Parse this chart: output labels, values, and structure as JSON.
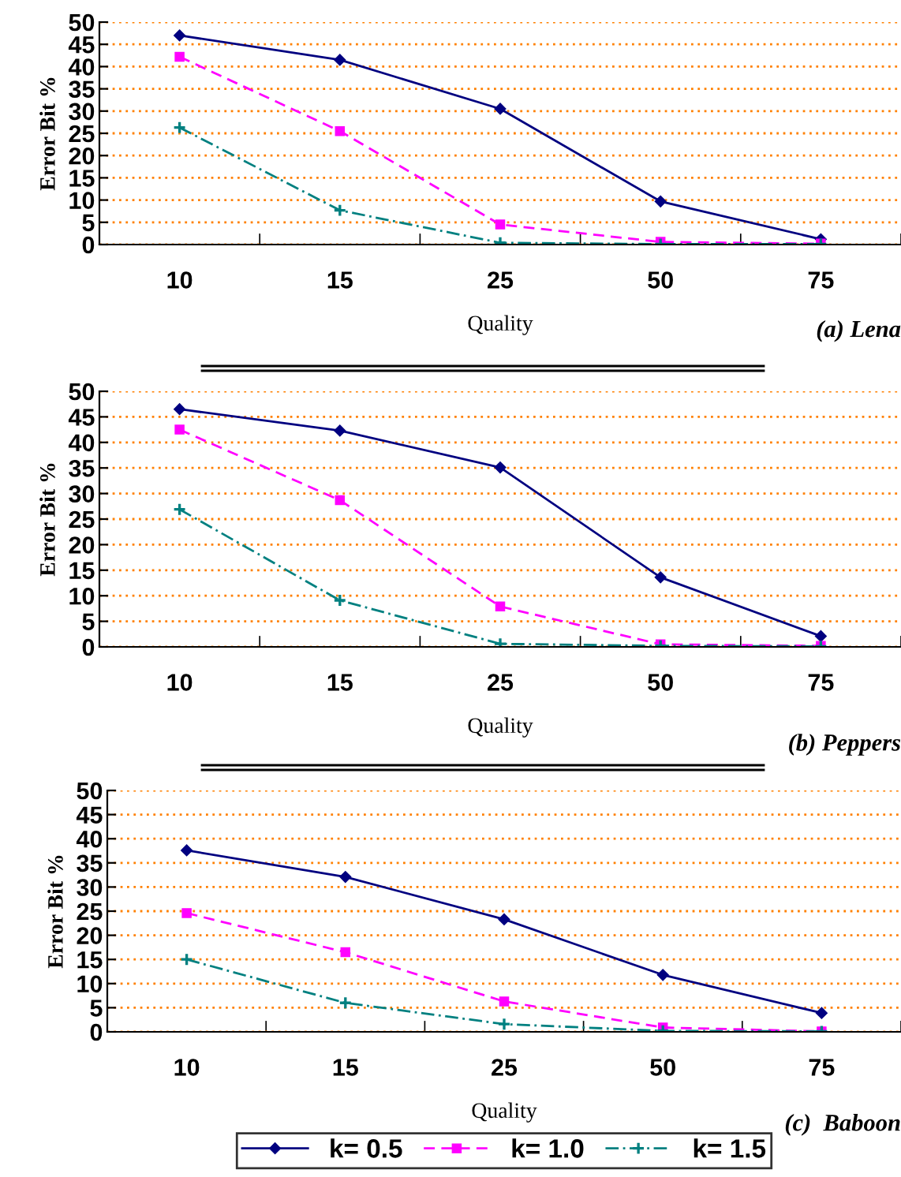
{
  "chart_data": [
    {
      "type": "line",
      "categories": [
        "10",
        "15",
        "25",
        "50",
        "75"
      ],
      "xlabel": "Quality",
      "ylabel": "Error Bit %",
      "ylim": [
        0,
        50
      ],
      "yticks": [
        0,
        5,
        10,
        15,
        20,
        25,
        30,
        35,
        40,
        45,
        50
      ],
      "grid": "y",
      "annotations": [
        "(a) Lena"
      ],
      "series": [
        {
          "color": "#000080",
          "marker": "diamond",
          "line_style": "solid",
          "values": [
            47,
            41.5,
            30.5,
            9.7,
            1.2
          ]
        },
        {
          "color": "#ff00ff",
          "marker": "square",
          "line_style": "dashed",
          "values": [
            42.2,
            25.5,
            4.5,
            0.6,
            0.2
          ]
        },
        {
          "color": "#008080",
          "marker": "cross",
          "line_style": "dashdot",
          "values": [
            26.3,
            7.7,
            0.4,
            0.1,
            0.1
          ]
        }
      ]
    },
    {
      "type": "line",
      "categories": [
        "10",
        "15",
        "25",
        "50",
        "75"
      ],
      "xlabel": "Quality",
      "ylabel": "Error Bit %",
      "ylim": [
        0,
        50
      ],
      "yticks": [
        0,
        5,
        10,
        15,
        20,
        25,
        30,
        35,
        40,
        45,
        50
      ],
      "grid": "y",
      "annotations": [
        "(b) Peppers"
      ],
      "series": [
        {
          "color": "#000080",
          "marker": "diamond",
          "line_style": "solid",
          "values": [
            46.5,
            42.3,
            35.1,
            13.6,
            2.1
          ]
        },
        {
          "color": "#ff00ff",
          "marker": "square",
          "line_style": "dashed",
          "values": [
            42.5,
            28.7,
            7.9,
            0.5,
            0.2
          ]
        },
        {
          "color": "#008080",
          "marker": "cross",
          "line_style": "dashdot",
          "values": [
            26.9,
            9.1,
            0.6,
            0.2,
            0.1
          ]
        }
      ]
    },
    {
      "type": "line",
      "categories": [
        "10",
        "15",
        "25",
        "50",
        "75"
      ],
      "xlabel": "Quality",
      "ylabel": "Error Bit %",
      "ylim": [
        0,
        50
      ],
      "yticks": [
        0,
        5,
        10,
        15,
        20,
        25,
        30,
        35,
        40,
        45,
        50
      ],
      "grid": "y",
      "legend": "bottom",
      "annotations": [
        "(c)  Baboon"
      ],
      "series": [
        {
          "name": "k= 0.5",
          "color": "#000080",
          "marker": "diamond",
          "line_style": "solid",
          "values": [
            37.6,
            32.1,
            23.3,
            11.8,
            3.9
          ]
        },
        {
          "name": "k= 1.0",
          "color": "#ff00ff",
          "marker": "square",
          "line_style": "dashed",
          "values": [
            24.6,
            16.5,
            6.3,
            0.9,
            0.1
          ]
        },
        {
          "name": "k= 1.5",
          "color": "#008080",
          "marker": "cross",
          "line_style": "dashdot",
          "values": [
            15.0,
            6.0,
            1.6,
            0.2,
            0.1
          ]
        }
      ]
    }
  ]
}
